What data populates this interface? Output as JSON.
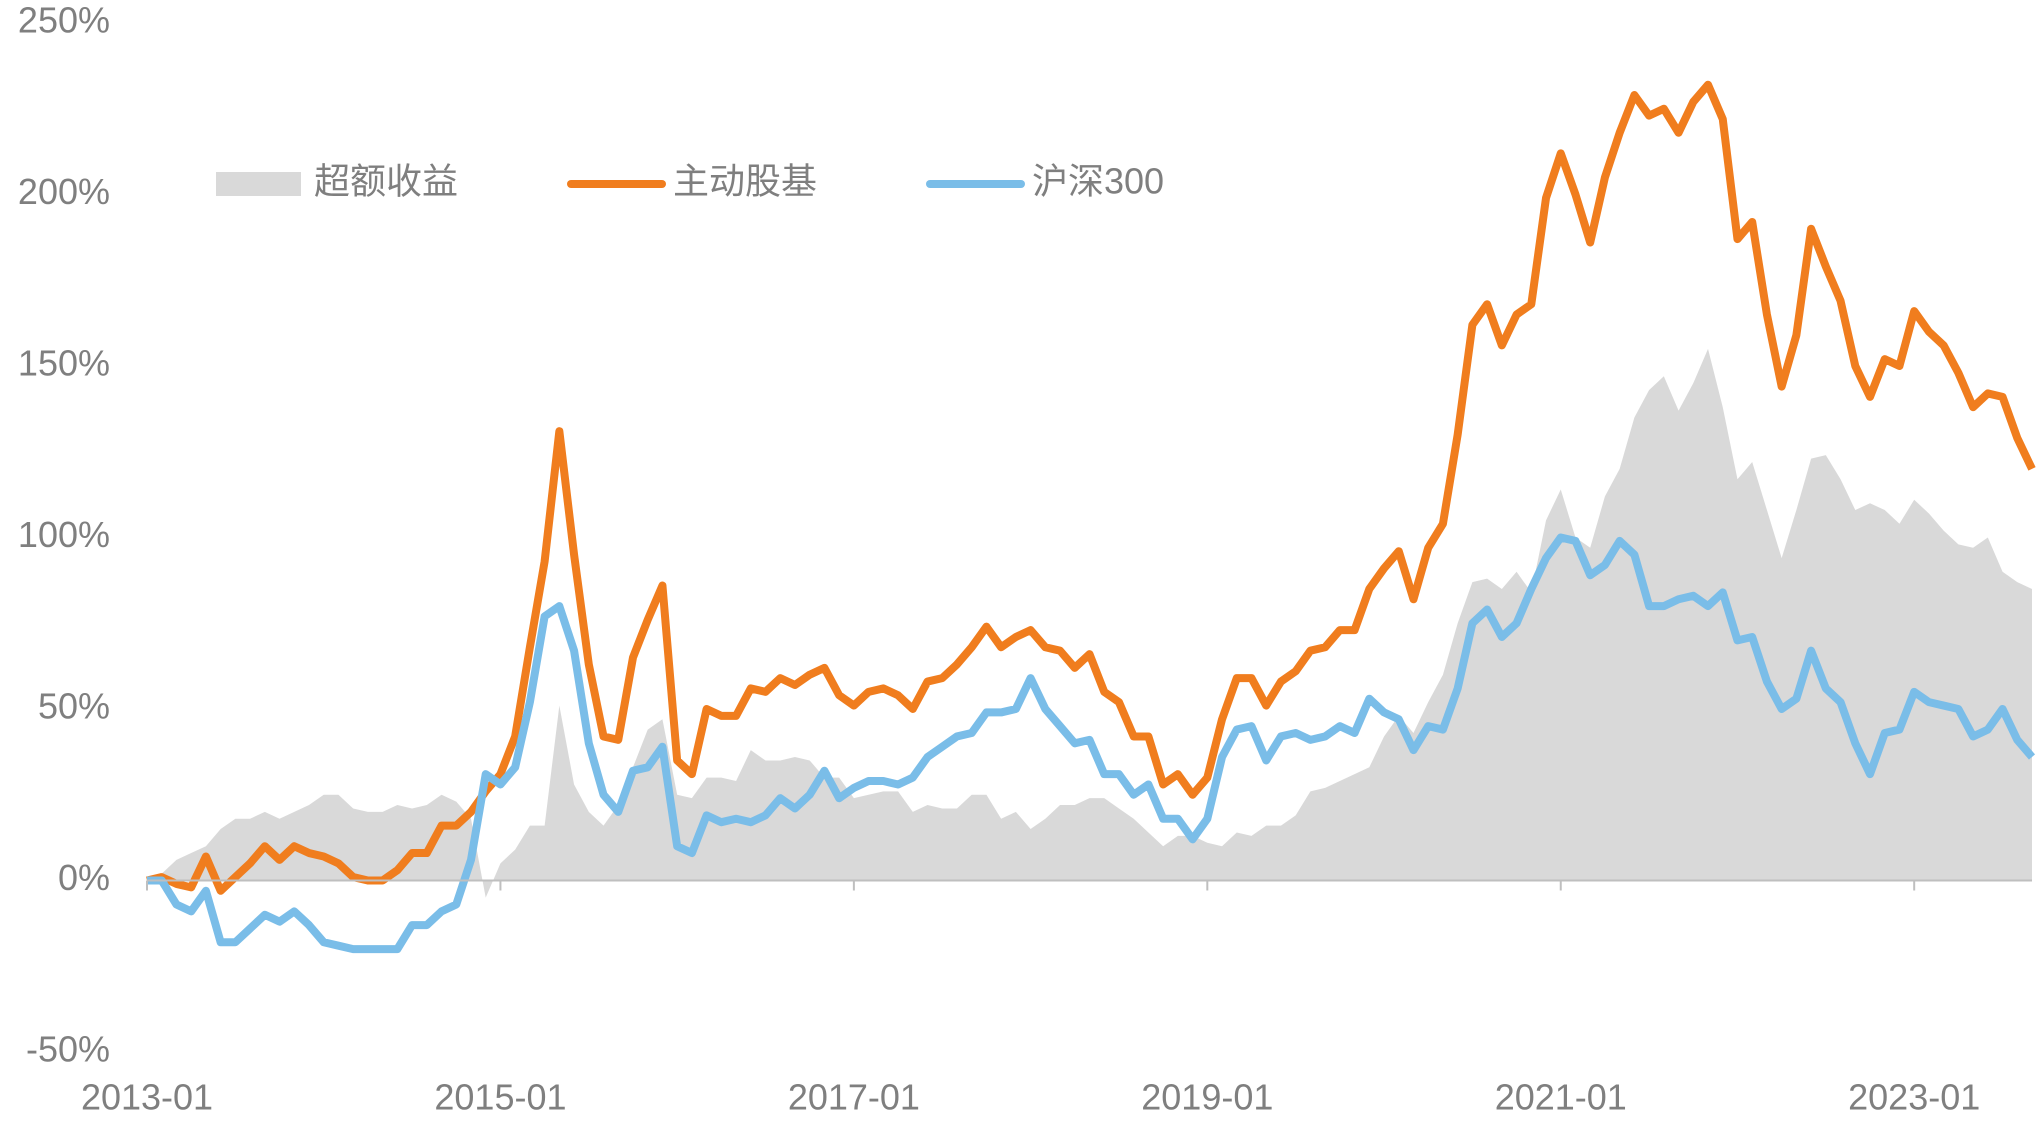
{
  "chart_data": {
    "type": "line",
    "x": [
      "2013-01",
      "2013-02",
      "2013-03",
      "2013-04",
      "2013-05",
      "2013-06",
      "2013-07",
      "2013-08",
      "2013-09",
      "2013-10",
      "2013-11",
      "2013-12",
      "2014-01",
      "2014-02",
      "2014-03",
      "2014-04",
      "2014-05",
      "2014-06",
      "2014-07",
      "2014-08",
      "2014-09",
      "2014-10",
      "2014-11",
      "2014-12",
      "2015-01",
      "2015-02",
      "2015-03",
      "2015-04",
      "2015-05",
      "2015-06",
      "2015-07",
      "2015-08",
      "2015-09",
      "2015-10",
      "2015-11",
      "2015-12",
      "2016-01",
      "2016-02",
      "2016-03",
      "2016-04",
      "2016-05",
      "2016-06",
      "2016-07",
      "2016-08",
      "2016-09",
      "2016-10",
      "2016-11",
      "2016-12",
      "2017-01",
      "2017-02",
      "2017-03",
      "2017-04",
      "2017-05",
      "2017-06",
      "2017-07",
      "2017-08",
      "2017-09",
      "2017-10",
      "2017-11",
      "2017-12",
      "2018-01",
      "2018-02",
      "2018-03",
      "2018-04",
      "2018-05",
      "2018-06",
      "2018-07",
      "2018-08",
      "2018-09",
      "2018-10",
      "2018-11",
      "2018-12",
      "2019-01",
      "2019-02",
      "2019-03",
      "2019-04",
      "2019-05",
      "2019-06",
      "2019-07",
      "2019-08",
      "2019-09",
      "2019-10",
      "2019-11",
      "2019-12",
      "2020-01",
      "2020-02",
      "2020-03",
      "2020-04",
      "2020-05",
      "2020-06",
      "2020-07",
      "2020-08",
      "2020-09",
      "2020-10",
      "2020-11",
      "2020-12",
      "2021-01",
      "2021-02",
      "2021-03",
      "2021-04",
      "2021-05",
      "2021-06",
      "2021-07",
      "2021-08",
      "2021-09",
      "2021-10",
      "2021-11",
      "2021-12",
      "2022-01",
      "2022-02",
      "2022-03",
      "2022-04",
      "2022-05",
      "2022-06",
      "2022-07",
      "2022-08",
      "2022-09",
      "2022-10",
      "2022-11",
      "2022-12",
      "2023-01",
      "2023-02",
      "2023-03",
      "2023-04",
      "2023-05",
      "2023-06",
      "2023-07",
      "2023-08",
      "2023-09"
    ],
    "xticks": [
      "2013-01",
      "2015-01",
      "2017-01",
      "2019-01",
      "2021-01",
      "2023-01"
    ],
    "ylim": [
      -50,
      250
    ],
    "yticks": [
      {
        "value": -50,
        "label": "-50%"
      },
      {
        "value": 0,
        "label": "0%"
      },
      {
        "value": 50,
        "label": "50%"
      },
      {
        "value": 100,
        "label": "100%"
      },
      {
        "value": 150,
        "label": "150%"
      },
      {
        "value": 200,
        "label": "200%"
      },
      {
        "value": 250,
        "label": "250%"
      }
    ],
    "legend": "top-left",
    "series": [
      {
        "name": "超额收益",
        "color": "#d9d9d9",
        "kind": "area",
        "values": [
          0,
          2,
          6,
          8,
          10,
          15,
          18,
          18,
          20,
          18,
          20,
          22,
          25,
          25,
          21,
          20,
          20,
          22,
          21,
          22,
          25,
          23,
          18,
          -5,
          5,
          9,
          16,
          16,
          51,
          28,
          20,
          16,
          22,
          33,
          44,
          47,
          25,
          24,
          30,
          30,
          29,
          38,
          35,
          35,
          36,
          35,
          30,
          30,
          24,
          25,
          26,
          26,
          20,
          22,
          21,
          21,
          25,
          25,
          18,
          20,
          15,
          18,
          22,
          22,
          24,
          24,
          21,
          18,
          14,
          10,
          13,
          13,
          11,
          10,
          14,
          13,
          16,
          16,
          19,
          26,
          27,
          29,
          31,
          33,
          42,
          48,
          43,
          52,
          60,
          75,
          87,
          88,
          85,
          90,
          84,
          105,
          114,
          100,
          97,
          112,
          120,
          135,
          143,
          147,
          137,
          145,
          155,
          138,
          117,
          122,
          108,
          94,
          108,
          123,
          124,
          117,
          108,
          110,
          108,
          104,
          111,
          107,
          102,
          98,
          97,
          100,
          90,
          87,
          85
        ]
      },
      {
        "name": "主动股基",
        "color": "#f07d1e",
        "kind": "line",
        "values": [
          0,
          1,
          -1,
          -2,
          7,
          -3,
          1,
          5,
          10,
          6,
          10,
          8,
          7,
          5,
          1,
          0,
          0,
          3,
          8,
          8,
          16,
          16,
          20,
          26,
          31,
          42,
          68,
          93,
          131,
          95,
          63,
          42,
          41,
          65,
          76,
          86,
          35,
          31,
          50,
          48,
          48,
          56,
          55,
          59,
          57,
          60,
          62,
          54,
          51,
          55,
          56,
          54,
          50,
          58,
          59,
          63,
          68,
          74,
          68,
          71,
          73,
          68,
          67,
          62,
          66,
          55,
          52,
          42,
          42,
          28,
          31,
          25,
          30,
          47,
          59,
          59,
          51,
          58,
          61,
          67,
          68,
          73,
          73,
          85,
          91,
          96,
          82,
          97,
          104,
          130,
          162,
          168,
          156,
          165,
          168,
          199,
          212,
          200,
          186,
          205,
          218,
          229,
          223,
          225,
          218,
          227,
          232,
          222,
          187,
          192,
          165,
          144,
          159,
          190,
          179,
          169,
          150,
          141,
          152,
          150,
          166,
          160,
          156,
          148,
          138,
          142,
          141,
          129,
          120
        ]
      },
      {
        "name": "沪深300",
        "color": "#7abde8",
        "kind": "line",
        "values": [
          0,
          0,
          -7,
          -9,
          -3,
          -18,
          -18,
          -14,
          -10,
          -12,
          -9,
          -13,
          -18,
          -19,
          -20,
          -20,
          -20,
          -20,
          -13,
          -13,
          -9,
          -7,
          6,
          31,
          28,
          33,
          52,
          77,
          80,
          67,
          40,
          25,
          20,
          32,
          33,
          39,
          10,
          8,
          19,
          17,
          18,
          17,
          19,
          24,
          21,
          25,
          32,
          24,
          27,
          29,
          29,
          28,
          30,
          36,
          39,
          42,
          43,
          49,
          49,
          50,
          59,
          50,
          45,
          40,
          41,
          31,
          31,
          25,
          28,
          18,
          18,
          12,
          18,
          36,
          44,
          45,
          35,
          42,
          43,
          41,
          42,
          45,
          43,
          53,
          49,
          47,
          38,
          45,
          44,
          56,
          75,
          79,
          71,
          75,
          85,
          94,
          100,
          99,
          89,
          92,
          99,
          95,
          80,
          80,
          82,
          83,
          80,
          84,
          70,
          71,
          58,
          50,
          53,
          67,
          56,
          52,
          40,
          31,
          43,
          44,
          55,
          52,
          51,
          50,
          42,
          44,
          50,
          41,
          36
        ]
      }
    ]
  }
}
